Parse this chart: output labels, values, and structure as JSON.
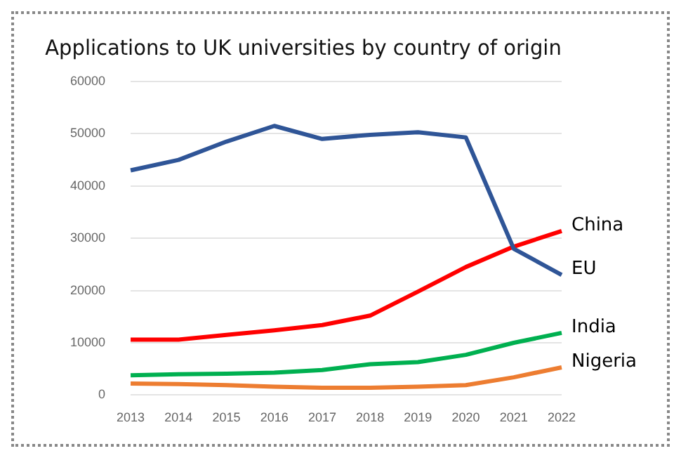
{
  "chart_data": {
    "type": "line",
    "title": "Applications to UK universities by country of origin",
    "categories": [
      "2013",
      "2014",
      "2015",
      "2016",
      "2017",
      "2018",
      "2019",
      "2020",
      "2021",
      "2022"
    ],
    "series": [
      {
        "name": "EU",
        "color": "#2f5597",
        "values": [
          43000,
          45000,
          48500,
          51500,
          49000,
          49800,
          50300,
          49300,
          28000,
          23000
        ]
      },
      {
        "name": "China",
        "color": "#ff0000",
        "values": [
          10600,
          10600,
          11500,
          12400,
          13400,
          15200,
          19800,
          24500,
          28400,
          31400
        ]
      },
      {
        "name": "India",
        "color": "#00b050",
        "values": [
          3800,
          4000,
          4100,
          4300,
          4800,
          5900,
          6300,
          7700,
          10000,
          11900
        ]
      },
      {
        "name": "Nigeria",
        "color": "#ed7d31",
        "values": [
          2200,
          2100,
          1900,
          1600,
          1400,
          1400,
          1600,
          1900,
          3400,
          5300
        ]
      }
    ],
    "ylim": [
      0,
      60000
    ],
    "yticks": [
      0,
      10000,
      20000,
      30000,
      40000,
      50000,
      60000
    ],
    "grid": "y",
    "legend": false,
    "marker": "none",
    "line_style": "solid"
  }
}
